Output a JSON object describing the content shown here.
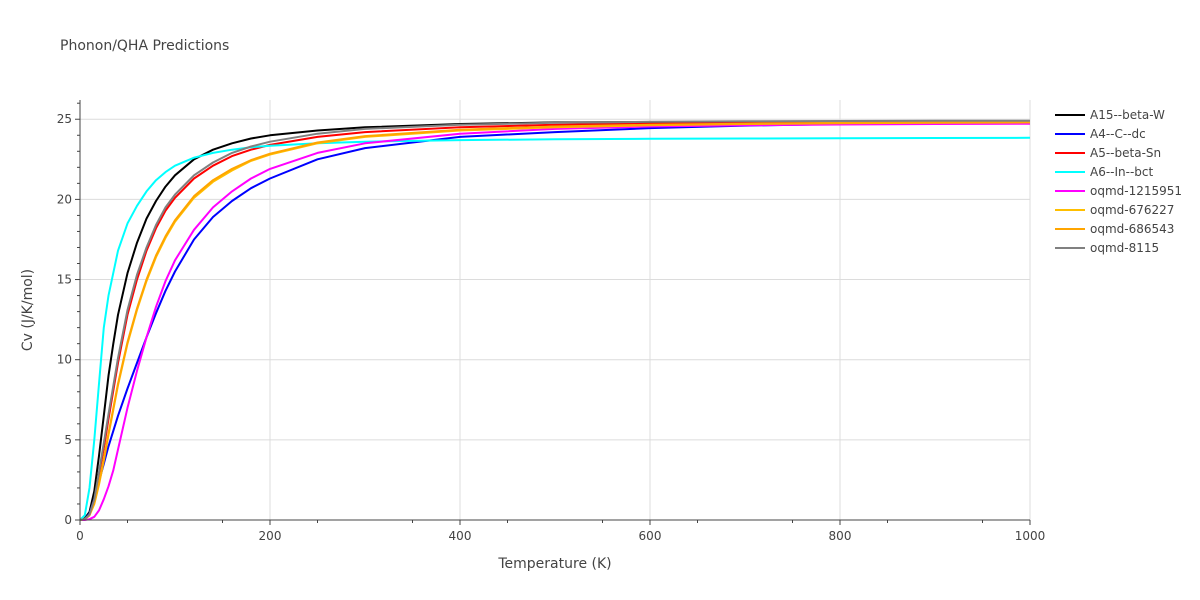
{
  "chart_data": {
    "type": "line",
    "title": "Phonon/QHA Predictions",
    "xlabel": "Temperature (K)",
    "ylabel": "Cv (J/K/mol)",
    "xlim": [
      0,
      1000
    ],
    "ylim": [
      0,
      26.2
    ],
    "x_ticks": [
      0,
      200,
      400,
      600,
      800,
      1000
    ],
    "y_ticks": [
      0,
      5,
      10,
      15,
      20,
      25
    ],
    "grid": true,
    "legend_position": "right",
    "series": [
      {
        "name": "A15--beta-W",
        "color": "#000000",
        "x": [
          0,
          5,
          10,
          15,
          20,
          25,
          30,
          35,
          40,
          50,
          60,
          70,
          80,
          90,
          100,
          120,
          140,
          160,
          180,
          200,
          250,
          300,
          400,
          500,
          600,
          700,
          800,
          900,
          1000
        ],
        "y": [
          0,
          0.1,
          0.5,
          1.8,
          4.0,
          6.5,
          9.0,
          11.0,
          12.8,
          15.4,
          17.3,
          18.8,
          19.9,
          20.8,
          21.5,
          22.5,
          23.1,
          23.5,
          23.8,
          24.0,
          24.3,
          24.5,
          24.7,
          24.8,
          24.82,
          24.84,
          24.85,
          24.86,
          24.87
        ]
      },
      {
        "name": "A4--C--dc",
        "color": "#0000ff",
        "x": [
          0,
          5,
          10,
          15,
          20,
          25,
          30,
          40,
          50,
          60,
          70,
          80,
          90,
          100,
          120,
          140,
          160,
          180,
          200,
          250,
          300,
          400,
          500,
          600,
          700,
          800,
          900,
          1000
        ],
        "y": [
          0,
          0.05,
          0.4,
          1.3,
          2.4,
          3.5,
          4.6,
          6.5,
          8.2,
          9.8,
          11.4,
          12.9,
          14.3,
          15.5,
          17.5,
          18.9,
          19.9,
          20.7,
          21.3,
          22.5,
          23.2,
          23.9,
          24.2,
          24.45,
          24.6,
          24.7,
          24.75,
          24.8
        ]
      },
      {
        "name": "A5--beta-Sn",
        "color": "#ff0000",
        "x": [
          0,
          5,
          10,
          15,
          20,
          25,
          30,
          40,
          50,
          60,
          70,
          80,
          90,
          100,
          120,
          140,
          160,
          180,
          200,
          250,
          300,
          400,
          500,
          600,
          700,
          800,
          900,
          1000
        ],
        "y": [
          0,
          0.05,
          0.3,
          1.2,
          2.8,
          4.5,
          6.3,
          9.8,
          12.8,
          15.0,
          16.8,
          18.2,
          19.3,
          20.1,
          21.3,
          22.1,
          22.7,
          23.1,
          23.4,
          23.9,
          24.2,
          24.5,
          24.65,
          24.72,
          24.77,
          24.8,
          24.82,
          24.83
        ]
      },
      {
        "name": "A6--In--bct",
        "color": "#00ffff",
        "x": [
          0,
          5,
          10,
          15,
          20,
          25,
          30,
          40,
          50,
          60,
          70,
          80,
          90,
          100,
          120,
          140,
          160,
          180,
          200,
          250,
          300,
          400,
          500,
          600,
          700,
          800,
          900,
          1000
        ],
        "y": [
          0,
          0.3,
          2.0,
          5.0,
          8.5,
          12.0,
          14.0,
          16.8,
          18.5,
          19.6,
          20.5,
          21.2,
          21.7,
          22.1,
          22.6,
          22.9,
          23.1,
          23.25,
          23.35,
          23.5,
          23.6,
          23.7,
          23.75,
          23.78,
          23.8,
          23.82,
          23.83,
          23.84
        ]
      },
      {
        "name": "oqmd-1215951",
        "color": "#ff00ff",
        "x": [
          0,
          5,
          10,
          15,
          20,
          25,
          30,
          35,
          40,
          50,
          60,
          70,
          80,
          90,
          100,
          120,
          140,
          160,
          180,
          200,
          250,
          300,
          400,
          500,
          600,
          700,
          800,
          900,
          1000
        ],
        "y": [
          0,
          0,
          0.05,
          0.2,
          0.6,
          1.3,
          2.1,
          3.1,
          4.4,
          7.0,
          9.3,
          11.4,
          13.3,
          14.9,
          16.2,
          18.1,
          19.5,
          20.5,
          21.3,
          21.9,
          22.9,
          23.5,
          24.1,
          24.4,
          24.55,
          24.62,
          24.67,
          24.7,
          24.72
        ]
      },
      {
        "name": "oqmd-676227",
        "color": "#ffbf00",
        "x": [
          0,
          5,
          10,
          15,
          20,
          25,
          30,
          40,
          50,
          60,
          70,
          80,
          90,
          100,
          120,
          140,
          160,
          180,
          200,
          250,
          300,
          400,
          500,
          600,
          700,
          800,
          900,
          1000
        ],
        "y": [
          0,
          0.05,
          0.3,
          1.0,
          2.2,
          3.7,
          5.3,
          8.4,
          11.0,
          13.1,
          14.9,
          16.4,
          17.6,
          18.6,
          20.1,
          21.1,
          21.8,
          22.4,
          22.8,
          23.5,
          23.9,
          24.3,
          24.5,
          24.62,
          24.7,
          24.75,
          24.78,
          24.8
        ]
      },
      {
        "name": "oqmd-686543",
        "color": "#ffa500",
        "x": [
          0,
          5,
          10,
          15,
          20,
          25,
          30,
          40,
          50,
          60,
          70,
          80,
          90,
          100,
          120,
          140,
          160,
          180,
          200,
          250,
          300,
          400,
          500,
          600,
          700,
          800,
          900,
          1000
        ],
        "y": [
          0,
          0.05,
          0.32,
          1.05,
          2.3,
          3.8,
          5.4,
          8.5,
          11.1,
          13.2,
          15.0,
          16.5,
          17.7,
          18.7,
          20.2,
          21.2,
          21.9,
          22.45,
          22.85,
          23.55,
          23.95,
          24.35,
          24.55,
          24.65,
          24.72,
          24.77,
          24.8,
          24.82
        ]
      },
      {
        "name": "oqmd-8115",
        "color": "#808080",
        "x": [
          0,
          5,
          10,
          15,
          20,
          25,
          30,
          40,
          50,
          60,
          70,
          80,
          90,
          100,
          120,
          140,
          160,
          180,
          200,
          250,
          300,
          400,
          500,
          600,
          700,
          800,
          900,
          1000
        ],
        "y": [
          0,
          0.05,
          0.35,
          1.3,
          3.0,
          4.8,
          6.6,
          10.1,
          13.1,
          15.3,
          17.0,
          18.4,
          19.5,
          20.3,
          21.5,
          22.3,
          22.9,
          23.3,
          23.6,
          24.1,
          24.4,
          24.65,
          24.78,
          24.84,
          24.87,
          24.89,
          24.9,
          24.91
        ]
      }
    ]
  }
}
